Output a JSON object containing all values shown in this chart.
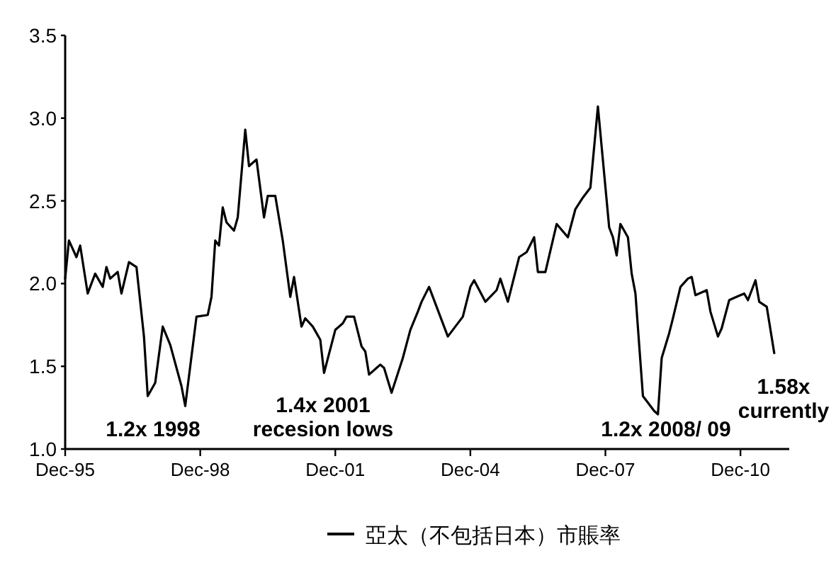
{
  "chart_data": {
    "type": "line",
    "legend": "bottom",
    "grid": false,
    "xlim": [
      "1995-12",
      "2012-01"
    ],
    "xticks": [
      {
        "value": "1995-12",
        "label": "Dec-95"
      },
      {
        "value": "1998-12",
        "label": "Dec-98"
      },
      {
        "value": "2001-12",
        "label": "Dec-01"
      },
      {
        "value": "2004-12",
        "label": "Dec-04"
      },
      {
        "value": "2007-12",
        "label": "Dec-07"
      },
      {
        "value": "2010-12",
        "label": "Dec-10"
      }
    ],
    "ylim": [
      1,
      3.5
    ],
    "yticks": [
      {
        "value": 1,
        "label": "1.0"
      },
      {
        "value": 1.5,
        "label": "1.5"
      },
      {
        "value": 2,
        "label": "2.0"
      },
      {
        "value": 2.5,
        "label": "2.5"
      },
      {
        "value": 3,
        "label": "3.0"
      },
      {
        "value": 3.5,
        "label": "3.5"
      }
    ],
    "x": [
      "1995-12",
      "1996-01",
      "1996-03",
      "1996-04",
      "1996-06",
      "1996-08",
      "1996-10",
      "1996-11",
      "1996-12",
      "1997-02",
      "1997-03",
      "1997-05",
      "1997-07",
      "1997-09",
      "1997-10",
      "1997-12",
      "1998-02",
      "1998-04",
      "1998-07",
      "1998-08",
      "1998-11",
      "1999-02",
      "1999-03",
      "1999-04",
      "1999-05",
      "1999-06",
      "1999-07",
      "1999-09",
      "1999-10",
      "1999-12",
      "2000-01",
      "2000-03",
      "2000-05",
      "2000-06",
      "2000-08",
      "2000-10",
      "2000-12",
      "2001-01",
      "2001-03",
      "2001-04",
      "2001-06",
      "2001-08",
      "2001-09",
      "2001-12",
      "2002-02",
      "2002-03",
      "2002-05",
      "2002-07",
      "2002-08",
      "2002-09",
      "2002-11",
      "2002-12",
      "2003-01",
      "2003-03",
      "2003-06",
      "2003-08",
      "2003-10",
      "2003-11",
      "2004-01",
      "2004-06",
      "2004-10",
      "2004-12",
      "2005-01",
      "2005-04",
      "2005-07",
      "2005-08",
      "2005-10",
      "2006-01",
      "2006-03",
      "2006-05",
      "2006-06",
      "2006-08",
      "2006-11",
      "2007-02",
      "2007-04",
      "2007-06",
      "2007-08",
      "2007-10",
      "2008-01",
      "2008-02",
      "2008-03",
      "2008-04",
      "2008-06",
      "2008-07",
      "2008-08",
      "2008-10",
      "2009-01",
      "2009-02",
      "2009-03",
      "2009-05",
      "2009-06",
      "2009-08",
      "2009-10",
      "2009-11",
      "2009-12",
      "2010-03",
      "2010-04",
      "2010-06",
      "2010-07",
      "2010-09",
      "2010-11",
      "2011-01",
      "2011-02",
      "2011-04",
      "2011-05",
      "2011-07",
      "2011-09"
    ],
    "series": [
      {
        "name": "亞太（不包括日本）市賬率",
        "color": "#000000",
        "values": [
          2.03,
          2.26,
          2.16,
          2.23,
          1.94,
          2.06,
          1.98,
          2.1,
          2.03,
          2.07,
          1.94,
          2.13,
          2.1,
          1.68,
          1.32,
          1.4,
          1.74,
          1.63,
          1.38,
          1.26,
          1.8,
          1.81,
          1.92,
          2.26,
          2.23,
          2.46,
          2.37,
          2.32,
          2.4,
          2.93,
          2.71,
          2.75,
          2.4,
          2.53,
          2.53,
          2.26,
          1.92,
          2.04,
          1.74,
          1.79,
          1.74,
          1.66,
          1.46,
          1.72,
          1.76,
          1.8,
          1.8,
          1.62,
          1.59,
          1.45,
          1.49,
          1.51,
          1.49,
          1.34,
          1.55,
          1.72,
          1.83,
          1.89,
          1.98,
          1.68,
          1.8,
          1.98,
          2.02,
          1.89,
          1.96,
          2.03,
          1.89,
          2.16,
          2.19,
          2.28,
          2.07,
          2.07,
          2.36,
          2.28,
          2.45,
          2.52,
          2.58,
          3.07,
          2.34,
          2.28,
          2.17,
          2.36,
          2.28,
          2.06,
          1.94,
          1.32,
          1.23,
          1.21,
          1.55,
          1.7,
          1.79,
          1.98,
          2.03,
          2.04,
          1.93,
          1.96,
          1.83,
          1.68,
          1.73,
          1.9,
          1.92,
          1.94,
          1.9,
          2.02,
          1.89,
          1.86,
          1.58
        ]
      }
    ],
    "annotations": [
      "1.2x 1998",
      "1.4x 2001\nrecesion lows",
      "1.2x 2008/ 09",
      "1.58x\ncurrently"
    ]
  }
}
